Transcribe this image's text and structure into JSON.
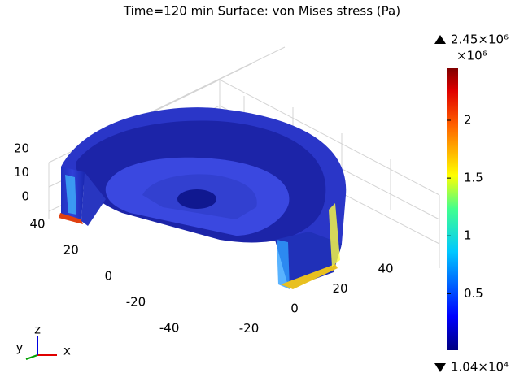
{
  "chart_data": {
    "type": "surface",
    "title": "Time=120 min   Surface: von Mises stress (Pa)",
    "zticks": [
      0,
      10,
      20
    ],
    "yticks": [
      40,
      20,
      0,
      -20,
      -40
    ],
    "xticks": [
      -20,
      0,
      20,
      40
    ],
    "colorbar": {
      "max_label": "2.45×10⁶",
      "min_label": "1.04×10⁴",
      "unit_label": "×10⁶",
      "clim": [
        0.0104,
        2.45
      ],
      "ticks": [
        0.5,
        1,
        1.5,
        2
      ]
    },
    "triad": {
      "x": "x",
      "y": "y",
      "z": "z"
    }
  }
}
